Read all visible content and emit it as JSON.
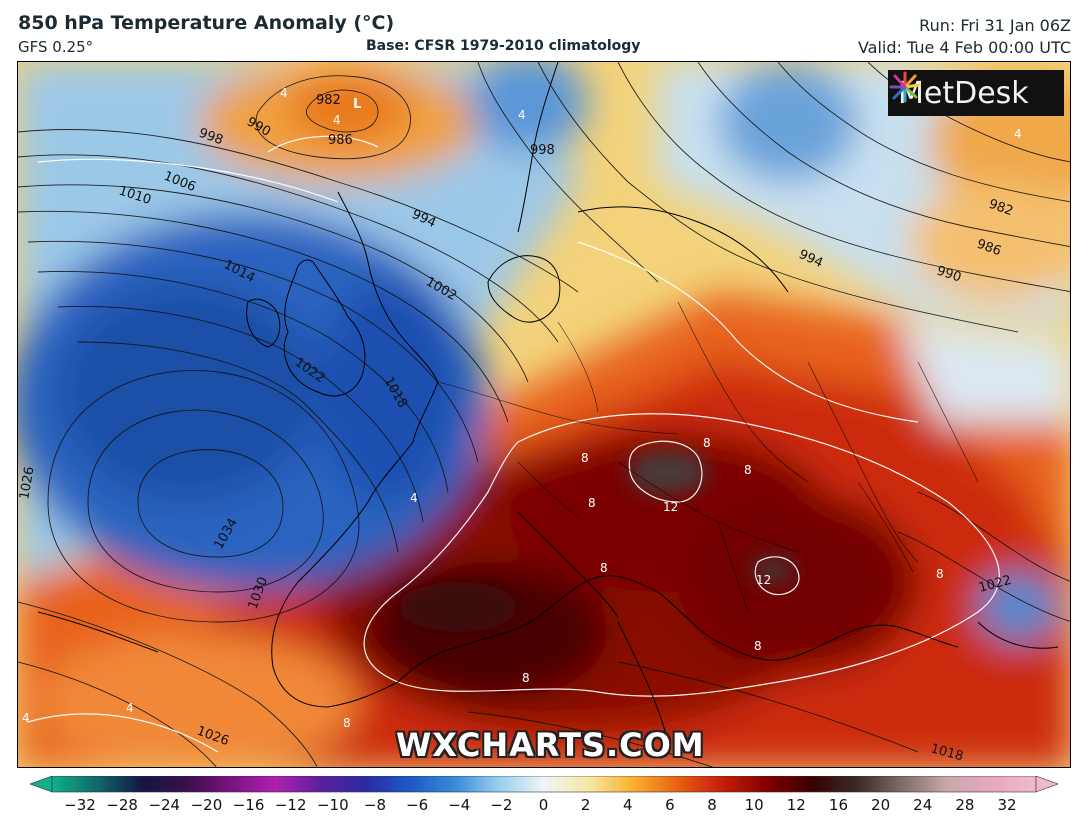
{
  "header": {
    "title": "850 hPa Temperature Anomaly (°C)",
    "model": "GFS 0.25°",
    "base": "Base: CFSR 1979-2010 climatology",
    "run": "Run: Fri 31 Jan 06Z",
    "valid": "Valid: Tue 4 Feb 00:00 UTC"
  },
  "logo": {
    "text": "MetDesk",
    "icon": "starburst-logo-icon"
  },
  "watermark": "WXCHARTS.COM",
  "colorbar": {
    "ticks": [
      "−32",
      "−28",
      "−24",
      "−20",
      "−16",
      "−12",
      "−10",
      "−8",
      "−6",
      "−4",
      "−2",
      "0",
      "2",
      "4",
      "6",
      "8",
      "10",
      "12",
      "16",
      "20",
      "24",
      "28",
      "32"
    ],
    "colors": [
      "#10b08a",
      "#0f6a6a",
      "#121845",
      "#3a0f4a",
      "#7a1280",
      "#b020b0",
      "#5a20a0",
      "#2a2aa0",
      "#1a5ac8",
      "#3a8ad8",
      "#9ad0f0",
      "#f0f4f8",
      "#f8e8a0",
      "#f8b030",
      "#e86010",
      "#c81c0a",
      "#800000",
      "#3a0000",
      "#3a2a2a",
      "#806a6a",
      "#c8a8a8",
      "#e8a8c0",
      "#f0b8d0"
    ]
  },
  "map": {
    "pressure_labels": [
      "982",
      "986",
      "990",
      "998",
      "1006",
      "1010",
      "1014",
      "1022",
      "1018",
      "1026",
      "1034",
      "1030",
      "1026",
      "994",
      "1002",
      "998",
      "994",
      "982",
      "986",
      "990",
      "1022",
      "1018"
    ],
    "anomaly_labels": [
      "4",
      "4",
      "4",
      "4",
      "4",
      "8",
      "8",
      "8",
      "8",
      "8",
      "12",
      "12",
      "8",
      "8",
      "8",
      "8",
      "4",
      "4"
    ],
    "lows": [
      "L"
    ]
  }
}
